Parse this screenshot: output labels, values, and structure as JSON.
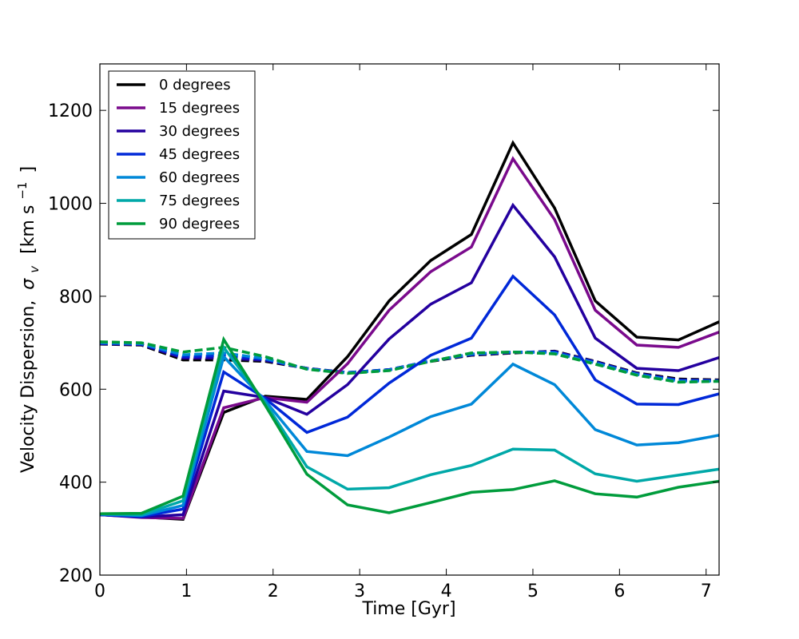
{
  "chart_data": {
    "type": "line",
    "title": "",
    "xlabel": "Time [Gyr]",
    "ylabel_prefix": "Velocity Dispersion,",
    "ylabel_symbol": "σ",
    "ylabel_subscript": "v",
    "ylabel_units": "[km s",
    "ylabel_units_sup": "−1",
    "ylabel_units_close": "]",
    "xlim": [
      0,
      7.15
    ],
    "ylim": [
      200,
      1300
    ],
    "xticks": [
      0,
      1,
      2,
      3,
      4,
      5,
      6,
      7
    ],
    "yticks": [
      200,
      400,
      600,
      800,
      1000,
      1200
    ],
    "grid": false,
    "legend_position": "top-left",
    "x": [
      0,
      0.48,
      0.96,
      1.43,
      1.91,
      2.39,
      2.86,
      3.34,
      3.82,
      4.29,
      4.77,
      5.25,
      5.72,
      6.2,
      6.68,
      7.15
    ],
    "series": [
      {
        "name": "0 degrees",
        "color": "#000000",
        "style": "solid",
        "values": [
          330,
          325,
          320,
          550,
          585,
          578,
          670,
          790,
          877,
          933,
          1130,
          990,
          790,
          712,
          706,
          745
        ]
      },
      {
        "name": "15 degrees",
        "color": "#7a0a8c",
        "style": "solid",
        "values": [
          330,
          324,
          322,
          560,
          582,
          572,
          655,
          770,
          853,
          906,
          1096,
          965,
          770,
          695,
          690,
          723
        ]
      },
      {
        "name": "30 degrees",
        "color": "#24009f",
        "style": "solid",
        "values": [
          330,
          325,
          330,
          596,
          582,
          546,
          610,
          708,
          783,
          829,
          996,
          885,
          710,
          645,
          640,
          668
        ]
      },
      {
        "name": "45 degrees",
        "color": "#0028d8",
        "style": "solid",
        "values": [
          330,
          326,
          342,
          637,
          580,
          507,
          540,
          613,
          673,
          710,
          843,
          760,
          620,
          568,
          567,
          590
        ]
      },
      {
        "name": "60 degrees",
        "color": "#0088d8",
        "style": "solid",
        "values": [
          331,
          328,
          350,
          670,
          575,
          466,
          457,
          497,
          541,
          568,
          654,
          610,
          513,
          480,
          485,
          501
        ]
      },
      {
        "name": "75 degrees",
        "color": "#00a8a8",
        "style": "solid",
        "values": [
          332,
          330,
          360,
          690,
          570,
          433,
          385,
          388,
          416,
          436,
          471,
          469,
          418,
          402,
          415,
          428
        ]
      },
      {
        "name": "90 degrees",
        "color": "#009c3c",
        "style": "solid",
        "values": [
          332,
          333,
          370,
          707,
          565,
          417,
          351,
          334,
          356,
          378,
          384,
          403,
          375,
          368,
          389,
          402
        ]
      },
      {
        "name": "",
        "color": "#000000",
        "style": "dashed",
        "in_legend": false,
        "values": [
          697,
          695,
          663,
          663,
          660,
          645,
          635,
          642,
          660,
          673,
          678,
          682,
          660,
          635,
          622,
          620
        ]
      },
      {
        "name": "",
        "color": "#24009f",
        "style": "dashed",
        "in_legend": false,
        "values": [
          698,
          696,
          667,
          667,
          662,
          645,
          636,
          642,
          661,
          674,
          679,
          681,
          659,
          634,
          620,
          619
        ]
      },
      {
        "name": "",
        "color": "#0028d8",
        "style": "dashed",
        "in_legend": false,
        "values": [
          699,
          697,
          670,
          672,
          664,
          644,
          636,
          642,
          661,
          675,
          680,
          680,
          658,
          633,
          619,
          618
        ]
      },
      {
        "name": "",
        "color": "#0088d8",
        "style": "dashed",
        "in_legend": false,
        "values": [
          700,
          698,
          674,
          678,
          666,
          644,
          635,
          641,
          661,
          676,
          680,
          678,
          656,
          632,
          617,
          617
        ]
      },
      {
        "name": "",
        "color": "#009c3c",
        "style": "dashed",
        "in_legend": false,
        "values": [
          702,
          700,
          680,
          690,
          670,
          643,
          634,
          640,
          660,
          678,
          680,
          676,
          654,
          630,
          615,
          617
        ]
      }
    ]
  }
}
